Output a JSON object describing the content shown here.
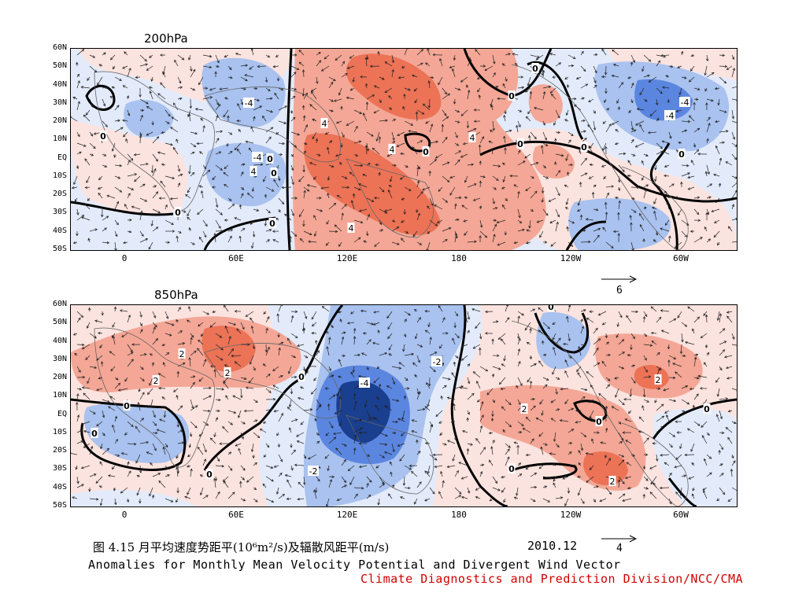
{
  "panels": [
    {
      "title": "200hPa",
      "y_ticks": [
        "60N",
        "50N",
        "40N",
        "30N",
        "20N",
        "10N",
        "EQ",
        "10S",
        "20S",
        "30S",
        "40S",
        "50S"
      ],
      "x_ticks": [
        "0",
        "60E",
        "120E",
        "180",
        "120W",
        "60W"
      ],
      "contour_labels": [
        "4",
        "-4",
        "4",
        "4",
        "4",
        "4",
        "-4",
        "-4",
        "-4",
        "0",
        "0",
        "0",
        "0",
        "0",
        "0",
        "0",
        "0",
        "0",
        "0",
        "0"
      ],
      "reference_vector": "6"
    },
    {
      "title": "850hPa",
      "y_ticks": [
        "60N",
        "50N",
        "40N",
        "30N",
        "20N",
        "10N",
        "EQ",
        "10S",
        "20S",
        "30S",
        "40S",
        "50S"
      ],
      "x_ticks": [
        "0",
        "60E",
        "120E",
        "180",
        "120W",
        "60W"
      ],
      "contour_labels": [
        "2",
        "2",
        "2",
        "-4",
        "-2",
        "-2",
        "2",
        "2",
        "2",
        "0",
        "0",
        "0",
        "0",
        "0",
        "0",
        "0",
        "0"
      ],
      "reference_vector": "4"
    }
  ],
  "caption": {
    "chinese": "图 4.15  月平均速度势距平(10⁶m²/s)及辐散风距平(m/s)",
    "date": "2010.12",
    "english": "Anomalies for Monthly Mean Velocity Potential and Divergent Wind Vector",
    "credit": "Climate Diagnostics and Prediction Division/NCC/CMA"
  },
  "colors": {
    "positive_light": "#fbe3df",
    "positive_mid": "#f4a796",
    "positive_strong": "#ec7356",
    "negative_light": "#e3ebfa",
    "negative_mid": "#a9c2ef",
    "negative_strong": "#5b86e0",
    "negative_deep": "#1a3f8f",
    "credit_text": "#d00000"
  }
}
